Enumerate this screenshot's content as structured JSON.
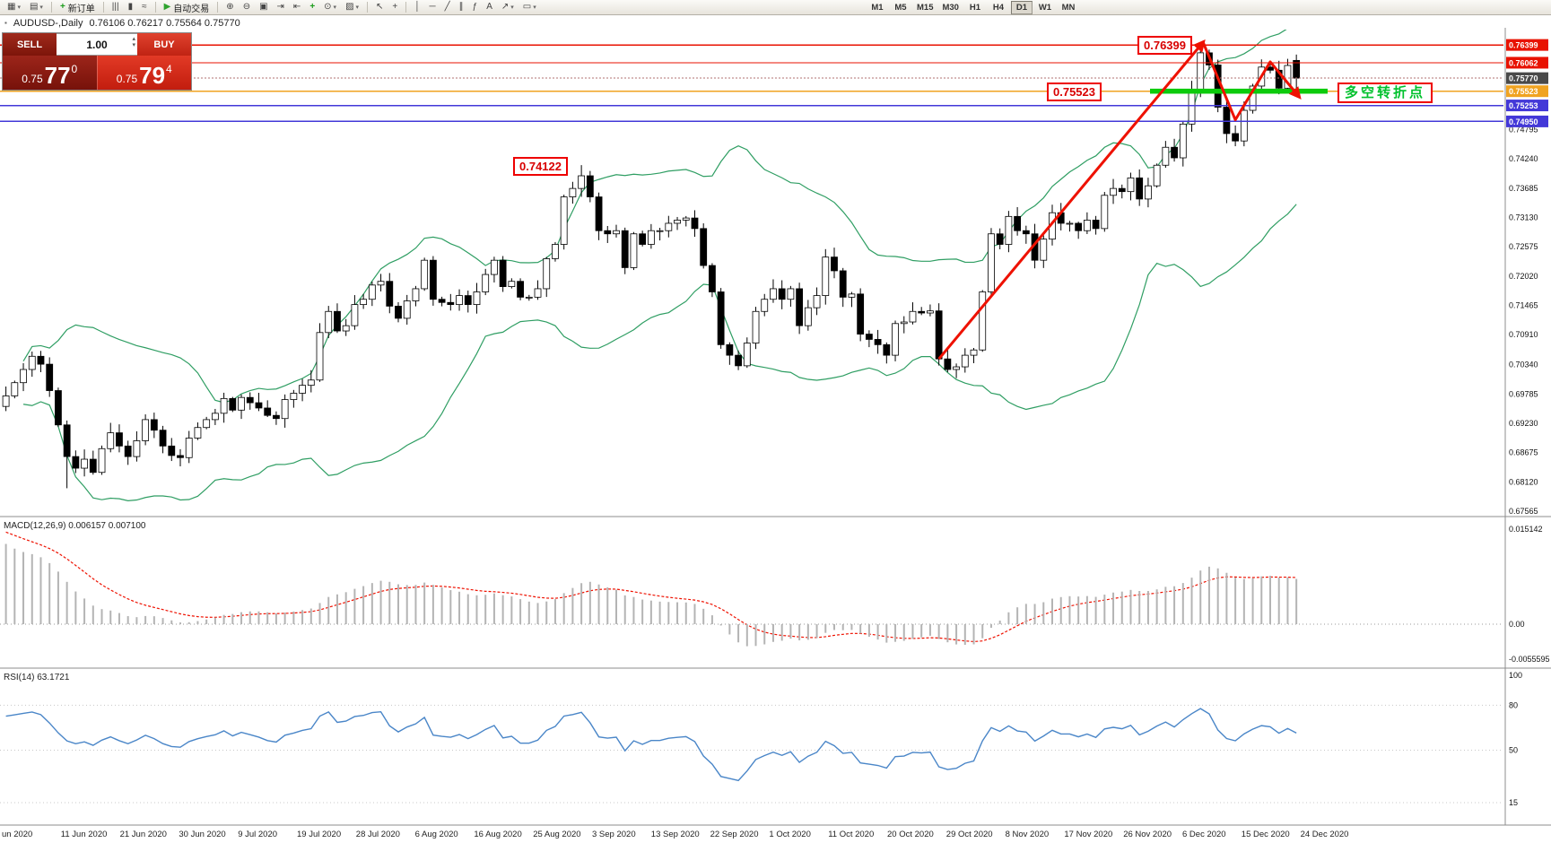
{
  "toolbar": {
    "left_items": [
      {
        "name": "new-chart-button",
        "glyph": "▦",
        "drop": true
      },
      {
        "name": "chart-profiles-button",
        "glyph": "▤",
        "drop": true
      },
      {
        "sep": true
      },
      {
        "name": "new-order-button",
        "glyph": "+",
        "glyph_color": "#1a9c1a",
        "label": "新订单"
      },
      {
        "sep": true
      },
      {
        "name": "bar-chart-button",
        "glyph": "|||"
      },
      {
        "name": "candle-chart-button",
        "glyph": "▮"
      },
      {
        "name": "line-chart-button",
        "glyph": "≈"
      },
      {
        "sep": true
      },
      {
        "name": "autotrading-button",
        "glyph": "▶",
        "glyph_color": "#2fa32f",
        "label": "自动交易"
      },
      {
        "sep": true
      },
      {
        "name": "zoom-in-button",
        "glyph": "⊕"
      },
      {
        "name": "zoom-out-button",
        "glyph": "⊖"
      },
      {
        "name": "tile-windows-button",
        "glyph": "▣"
      },
      {
        "name": "auto-scroll-button",
        "glyph": "⇥"
      },
      {
        "name": "chart-shift-button",
        "glyph": "⇤"
      },
      {
        "name": "indicators-button",
        "glyph": "+",
        "glyph_color": "#1a9c1a"
      },
      {
        "name": "periods-button",
        "glyph": "⊙",
        "drop": true
      },
      {
        "name": "templates-button",
        "glyph": "▨",
        "drop": true
      },
      {
        "sep": true
      },
      {
        "name": "cursor-button",
        "glyph": "↖"
      },
      {
        "name": "crosshair-button",
        "glyph": "+"
      },
      {
        "sep": true
      },
      {
        "name": "vertical-line-button",
        "glyph": "│"
      },
      {
        "name": "horizontal-line-button",
        "glyph": "─"
      },
      {
        "name": "trendline-button",
        "glyph": "╱"
      },
      {
        "name": "channel-button",
        "glyph": "∥"
      },
      {
        "name": "fibonacci-button",
        "glyph": "ƒ"
      },
      {
        "name": "text-button",
        "glyph": "A"
      },
      {
        "name": "arrows-button",
        "glyph": "↗",
        "drop": true
      },
      {
        "name": "shapes-button",
        "glyph": "▭",
        "drop": true
      }
    ],
    "timeframes": [
      "M1",
      "M5",
      "M15",
      "M30",
      "H1",
      "H4",
      "D1",
      "W1",
      "MN"
    ],
    "active_timeframe": "D1"
  },
  "chart_header": {
    "icon": "▪",
    "symbol_period": "AUDUSD-,Daily",
    "ohlc": "0.76106 0.76217 0.75564 0.75770"
  },
  "trade_panel": {
    "sell_label": "SELL",
    "buy_label": "BUY",
    "volume": "1.00",
    "bid": {
      "prefix": "0.75",
      "big": "77",
      "sup": "0"
    },
    "ask": {
      "prefix": "0.75",
      "big": "79",
      "sup": "4"
    }
  },
  "icons": {
    "volume_up": "▴",
    "volume_down": "▾"
  },
  "annotations": {
    "high": "0.76399",
    "mid": "0.75523",
    "peak": "0.74122",
    "turning_point": "多空转折点"
  },
  "chart_data": {
    "type": "candlestick",
    "symbol": "AUDUSD",
    "period": "Daily",
    "closes": [
      0.6975,
      0.7,
      0.7025,
      0.705,
      0.7035,
      0.6985,
      0.692,
      0.686,
      0.6838,
      0.6855,
      0.683,
      0.6875,
      0.6905,
      0.688,
      0.686,
      0.689,
      0.693,
      0.691,
      0.688,
      0.6862,
      0.6858,
      0.6895,
      0.6915,
      0.693,
      0.6942,
      0.697,
      0.6948,
      0.6972,
      0.6962,
      0.6952,
      0.6938,
      0.6932,
      0.6968,
      0.698,
      0.6995,
      0.7005,
      0.7095,
      0.7135,
      0.7098,
      0.7108,
      0.7148,
      0.7158,
      0.7185,
      0.7192,
      0.7145,
      0.7122,
      0.7155,
      0.7178,
      0.7232,
      0.7158,
      0.7152,
      0.7148,
      0.7165,
      0.7148,
      0.7172,
      0.7205,
      0.7232,
      0.7182,
      0.7192,
      0.7162,
      0.7162,
      0.7178,
      0.7235,
      0.7262,
      0.7352,
      0.7368,
      0.7392,
      0.7352,
      0.7288,
      0.7282,
      0.7288,
      0.7218,
      0.7282,
      0.7262,
      0.7288,
      0.7288,
      0.7302,
      0.7308,
      0.7312,
      0.7292,
      0.7222,
      0.7172,
      0.7072,
      0.7052,
      0.7032,
      0.7075,
      0.7135,
      0.7158,
      0.7178,
      0.7158,
      0.7178,
      0.7108,
      0.7142,
      0.7165,
      0.7238,
      0.7212,
      0.7162,
      0.7168,
      0.7092,
      0.7082,
      0.7072,
      0.7052,
      0.7112,
      0.7115,
      0.7135,
      0.7132,
      0.7136,
      0.7045,
      0.7025,
      0.703,
      0.7052,
      0.7062,
      0.7172,
      0.7282,
      0.7262,
      0.7315,
      0.7288,
      0.7282,
      0.7232,
      0.7272,
      0.7322,
      0.7302,
      0.7302,
      0.7288,
      0.7308,
      0.7292,
      0.7355,
      0.7368,
      0.7362,
      0.7388,
      0.7348,
      0.7373,
      0.7412,
      0.7446,
      0.7426,
      0.749,
      0.7556,
      0.7625,
      0.7602,
      0.7522,
      0.7472,
      0.7458,
      0.7516,
      0.7562,
      0.7598,
      0.7592,
      0.7558,
      0.7601,
      0.7577
    ],
    "overrides": {
      "7": {
        "l": 0.68
      },
      "66": {
        "h": 0.74122
      },
      "137": {
        "h": 0.76399
      },
      "141": {
        "l": 0.7448
      },
      "145": {
        "h": 0.76062
      },
      "148": {
        "o": 0.76106,
        "h": 0.76217,
        "l": 0.75564
      }
    },
    "bollinger": {
      "period": 20,
      "deviation": 2,
      "color": "#2f9e63"
    },
    "levels": [
      {
        "price": 0.76399,
        "color": "#e81200",
        "style": "solid"
      },
      {
        "price": 0.76062,
        "color": "#e81200",
        "style": "solid"
      },
      {
        "price": 0.7577,
        "color": "#b07070",
        "style": "dotted",
        "current": true
      },
      {
        "price": 0.75523,
        "color": "#f0a321",
        "style": "solid"
      },
      {
        "price": 0.75253,
        "color": "#4338d8",
        "style": "solid"
      },
      {
        "price": 0.7495,
        "color": "#4338d8",
        "style": "solid"
      }
    ],
    "price_tags": [
      {
        "text": "0.76399",
        "bg": "#e81200"
      },
      {
        "text": "0.76062",
        "bg": "#e81200"
      },
      {
        "text": "0.75770",
        "bg": "#4a4a4a"
      },
      {
        "text": "0.75523",
        "bg": "#f0a321"
      },
      {
        "text": "0.75253",
        "bg": "#4338d8"
      },
      {
        "text": "0.74950",
        "bg": "#4338d8"
      }
    ],
    "y_ticks": [
      "0.74795",
      "0.74240",
      "0.73685",
      "0.73130",
      "0.72575",
      "0.72020",
      "0.71465",
      "0.70910",
      "0.70340",
      "0.69785",
      "0.69230",
      "0.68675",
      "0.68120",
      "0.67565"
    ],
    "x_labels": [
      "un 2020",
      "11 Jun 2020",
      "21 Jun 2020",
      "30 Jun 2020",
      "9 Jul 2020",
      "19 Jul 2020",
      "28 Jul 2020",
      "6 Aug 2020",
      "16 Aug 2020",
      "25 Aug 2020",
      "3 Sep 2020",
      "13 Sep 2020",
      "22 Sep 2020",
      "1 Oct 2020",
      "11 Oct 2020",
      "20 Oct 2020",
      "29 Oct 2020",
      "8 Nov 2020",
      "17 Nov 2020",
      "26 Nov 2020",
      "6 Dec 2020",
      "15 Dec 2020",
      "24 Dec 2020"
    ],
    "trend_arrows": [
      {
        "points": [
          [
            107,
            0.7045
          ],
          [
            137.3,
            0.7645
          ]
        ],
        "color": "#ee1100"
      },
      {
        "points": [
          [
            137.3,
            0.7645
          ],
          [
            141,
            0.7498
          ],
          [
            145,
            0.7608
          ],
          [
            148.3,
            0.7542
          ]
        ],
        "color": "#ee1100"
      }
    ],
    "support_segment": {
      "price": 0.75523,
      "x_from": 1282,
      "x_to": 1480,
      "color": "#0ccb0c"
    },
    "macd": {
      "fast": 12,
      "slow": 26,
      "signal": 9,
      "label": "MACD(12,26,9) 0.006157 0.007100",
      "scale_labels": [
        "0.015142",
        "0.00",
        "-0.0055595"
      ],
      "histogram_color": "#b4b4b4",
      "signal_color": "#ee1100"
    },
    "rsi": {
      "period": 14,
      "label": "RSI(14) 63.1721",
      "scale_labels": [
        "100",
        "80",
        "50",
        "15"
      ],
      "levels": [
        80,
        50,
        15
      ],
      "line_color": "#4a86c8"
    }
  }
}
